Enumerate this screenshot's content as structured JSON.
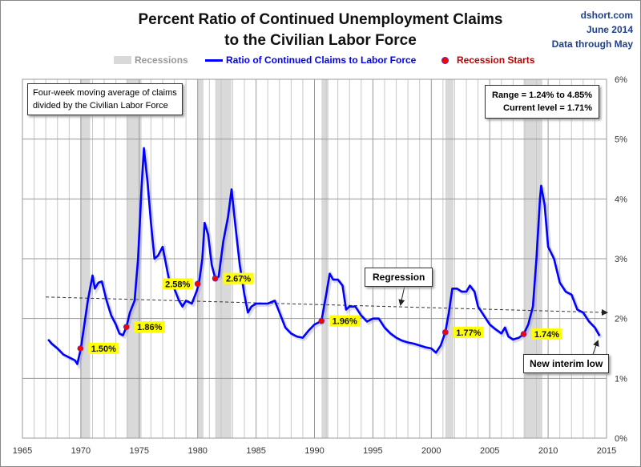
{
  "header": {
    "title_line1": "Percent Ratio of Continued Unemployment Claims",
    "title_line2": "to the Civilian Labor Force",
    "source": "dshort.com",
    "date": "June 2014",
    "data_through": "Data through May"
  },
  "legend": {
    "recessions": "Recessions",
    "series": "Ratio of Continued Claims to Labor Force",
    "starts": "Recession Starts"
  },
  "notes": {
    "description_line1": "Four-week moving average of claims",
    "description_line2": "divided by the Civilian Labor Force",
    "range": "Range = 1.24% to 4.85%",
    "current": "Current level = 1.71%",
    "regression": "Regression",
    "new_low": "New interim low"
  },
  "colors": {
    "series": "#0000ff",
    "recession_band": "#d9d9d9",
    "marker": "#ff0000",
    "label_bg": "#ffff00",
    "grid": "#b0b0b0"
  },
  "chart_data": {
    "type": "line",
    "title": "Percent Ratio of Continued Unemployment Claims to the Civilian Labor Force",
    "xlim": [
      1965,
      2015
    ],
    "ylim": [
      0,
      6
    ],
    "x_ticks": [
      "1965",
      "1970",
      "1975",
      "1980",
      "1985",
      "1990",
      "1995",
      "2000",
      "2005",
      "2010",
      "2015"
    ],
    "y_ticks": [
      "0%",
      "1%",
      "2%",
      "3%",
      "4%",
      "5%",
      "6%"
    ],
    "y_axis_side": "right",
    "grid": true,
    "recessions": [
      [
        1969.96,
        1970.8
      ],
      [
        1973.9,
        1975.2
      ],
      [
        1980.0,
        1980.5
      ],
      [
        1981.5,
        1982.9
      ],
      [
        1990.6,
        1991.2
      ],
      [
        2001.2,
        2001.9
      ],
      [
        2007.9,
        2009.5
      ]
    ],
    "series": [
      {
        "name": "Ratio of Continued Claims to Labor Force",
        "points": [
          [
            1967.2,
            1.65
          ],
          [
            1967.5,
            1.58
          ],
          [
            1968,
            1.5
          ],
          [
            1968.5,
            1.4
          ],
          [
            1969,
            1.35
          ],
          [
            1969.5,
            1.3
          ],
          [
            1969.7,
            1.24
          ],
          [
            1970,
            1.5
          ],
          [
            1970.3,
            1.9
          ],
          [
            1970.6,
            2.3
          ],
          [
            1971,
            2.72
          ],
          [
            1971.2,
            2.5
          ],
          [
            1971.5,
            2.6
          ],
          [
            1971.8,
            2.62
          ],
          [
            1972.2,
            2.3
          ],
          [
            1972.6,
            2.05
          ],
          [
            1973,
            1.9
          ],
          [
            1973.3,
            1.75
          ],
          [
            1973.6,
            1.72
          ],
          [
            1973.9,
            1.86
          ],
          [
            1974.2,
            2.1
          ],
          [
            1974.6,
            2.3
          ],
          [
            1974.9,
            3.0
          ],
          [
            1975.2,
            4.2
          ],
          [
            1975.4,
            4.85
          ],
          [
            1975.7,
            4.3
          ],
          [
            1976,
            3.6
          ],
          [
            1976.3,
            3.0
          ],
          [
            1976.6,
            3.05
          ],
          [
            1977,
            3.2
          ],
          [
            1977.3,
            2.9
          ],
          [
            1977.6,
            2.6
          ],
          [
            1978,
            2.5
          ],
          [
            1978.4,
            2.3
          ],
          [
            1978.7,
            2.2
          ],
          [
            1979,
            2.3
          ],
          [
            1979.5,
            2.25
          ],
          [
            1979.9,
            2.45
          ],
          [
            1980.1,
            2.58
          ],
          [
            1980.4,
            3.0
          ],
          [
            1980.6,
            3.6
          ],
          [
            1980.9,
            3.4
          ],
          [
            1981.2,
            2.9
          ],
          [
            1981.5,
            2.67
          ],
          [
            1981.8,
            2.7
          ],
          [
            1982.2,
            3.3
          ],
          [
            1982.6,
            3.7
          ],
          [
            1982.9,
            4.16
          ],
          [
            1983.2,
            3.6
          ],
          [
            1983.6,
            2.9
          ],
          [
            1984,
            2.4
          ],
          [
            1984.3,
            2.1
          ],
          [
            1984.6,
            2.2
          ],
          [
            1985,
            2.25
          ],
          [
            1986,
            2.25
          ],
          [
            1986.6,
            2.3
          ],
          [
            1987,
            2.1
          ],
          [
            1987.5,
            1.85
          ],
          [
            1988,
            1.75
          ],
          [
            1988.5,
            1.7
          ],
          [
            1989,
            1.68
          ],
          [
            1989.5,
            1.8
          ],
          [
            1990,
            1.9
          ],
          [
            1990.6,
            1.96
          ],
          [
            1991,
            2.4
          ],
          [
            1991.3,
            2.75
          ],
          [
            1991.6,
            2.65
          ],
          [
            1992,
            2.65
          ],
          [
            1992.4,
            2.55
          ],
          [
            1992.7,
            2.15
          ],
          [
            1993,
            2.2
          ],
          [
            1993.5,
            2.2
          ],
          [
            1994,
            2.05
          ],
          [
            1994.5,
            1.95
          ],
          [
            1995,
            2.0
          ],
          [
            1995.5,
            2.0
          ],
          [
            1996,
            1.85
          ],
          [
            1996.5,
            1.75
          ],
          [
            1997,
            1.68
          ],
          [
            1997.5,
            1.63
          ],
          [
            1998,
            1.6
          ],
          [
            1998.5,
            1.58
          ],
          [
            1999,
            1.55
          ],
          [
            1999.5,
            1.52
          ],
          [
            2000,
            1.5
          ],
          [
            2000.4,
            1.43
          ],
          [
            2000.8,
            1.55
          ],
          [
            2001.2,
            1.77
          ],
          [
            2001.5,
            2.1
          ],
          [
            2001.8,
            2.5
          ],
          [
            2002.2,
            2.5
          ],
          [
            2002.6,
            2.45
          ],
          [
            2003,
            2.45
          ],
          [
            2003.3,
            2.55
          ],
          [
            2003.7,
            2.45
          ],
          [
            2004,
            2.2
          ],
          [
            2004.5,
            2.05
          ],
          [
            2005,
            1.9
          ],
          [
            2005.5,
            1.82
          ],
          [
            2006,
            1.75
          ],
          [
            2006.3,
            1.85
          ],
          [
            2006.6,
            1.7
          ],
          [
            2007,
            1.65
          ],
          [
            2007.5,
            1.68
          ],
          [
            2007.9,
            1.74
          ],
          [
            2008.3,
            1.9
          ],
          [
            2008.7,
            2.2
          ],
          [
            2009,
            3.0
          ],
          [
            2009.3,
            4.0
          ],
          [
            2009.4,
            4.22
          ],
          [
            2009.7,
            3.9
          ],
          [
            2010,
            3.2
          ],
          [
            2010.5,
            3.0
          ],
          [
            2011,
            2.6
          ],
          [
            2011.5,
            2.45
          ],
          [
            2012,
            2.4
          ],
          [
            2012.5,
            2.15
          ],
          [
            2013,
            2.1
          ],
          [
            2013.5,
            1.95
          ],
          [
            2014,
            1.85
          ],
          [
            2014.4,
            1.71
          ]
        ]
      }
    ],
    "regression": [
      [
        1967,
        2.36
      ],
      [
        2015,
        2.1
      ]
    ],
    "recession_starts": [
      {
        "x": 1969.96,
        "y": 1.5,
        "label": "1.50%",
        "side": "right"
      },
      {
        "x": 1973.9,
        "y": 1.86,
        "label": "1.86%",
        "side": "right"
      },
      {
        "x": 1980.0,
        "y": 2.58,
        "label": "2.58%",
        "side": "left"
      },
      {
        "x": 1981.5,
        "y": 2.67,
        "label": "2.67%",
        "side": "right"
      },
      {
        "x": 1990.6,
        "y": 1.96,
        "label": "1.96%",
        "side": "right"
      },
      {
        "x": 2001.2,
        "y": 1.77,
        "label": "1.77%",
        "side": "right"
      },
      {
        "x": 2007.9,
        "y": 1.74,
        "label": "1.74%",
        "side": "right"
      }
    ]
  }
}
